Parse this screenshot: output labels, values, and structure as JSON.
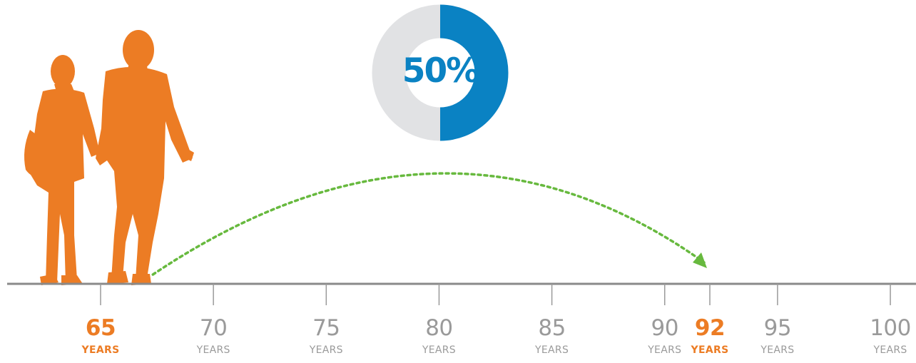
{
  "colors": {
    "accent": "#ec7c24",
    "donut_fill": "#0a82c3",
    "donut_rest": "#e1e2e4",
    "axis": "#8a8a8a",
    "tick_label": "#9a9a9a",
    "arrow": "#67b93e"
  },
  "donut": {
    "percent": 50,
    "label": "50%"
  },
  "figure": {
    "icon": "couple-walking-silhouette"
  },
  "arrow": {
    "from_age": 67,
    "to_age": 92
  },
  "timeline": {
    "ticks": [
      {
        "value": 65,
        "label": "65",
        "unit": "YEARS",
        "highlight": true
      },
      {
        "value": 70,
        "label": "70",
        "unit": "YEARS",
        "highlight": false
      },
      {
        "value": 75,
        "label": "75",
        "unit": "YEARS",
        "highlight": false
      },
      {
        "value": 80,
        "label": "80",
        "unit": "YEARS",
        "highlight": false
      },
      {
        "value": 85,
        "label": "85",
        "unit": "YEARS",
        "highlight": false
      },
      {
        "value": 90,
        "label": "90",
        "unit": "YEARS",
        "highlight": false
      },
      {
        "value": 92,
        "label": "92",
        "unit": "YEARS",
        "highlight": true
      },
      {
        "value": 95,
        "label": "95",
        "unit": "YEARS",
        "highlight": false
      },
      {
        "value": 100,
        "label": "100",
        "unit": "YEARS",
        "highlight": false
      }
    ]
  }
}
